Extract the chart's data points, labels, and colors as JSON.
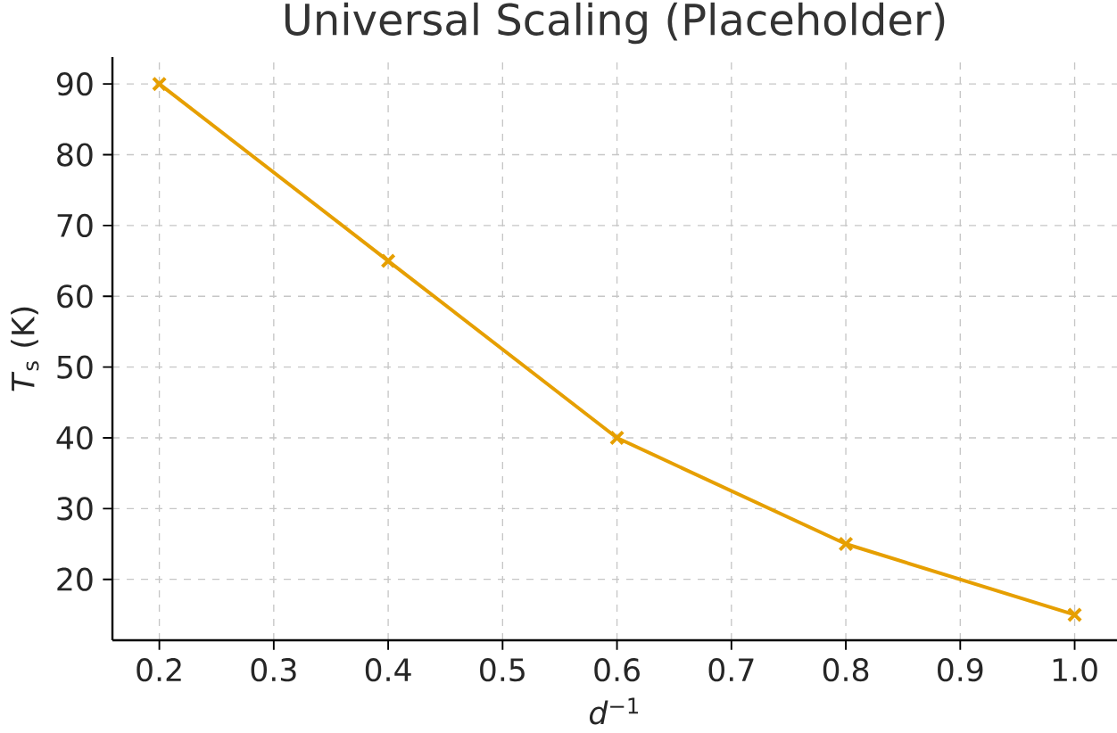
{
  "chart_data": {
    "type": "line",
    "title": "Universal Scaling (Placeholder)",
    "xlabel": "*d*$^{−1}$",
    "ylabel": "*T*$_{s}$ (K)",
    "x": [
      0.2,
      0.4,
      0.6,
      0.8,
      1.0
    ],
    "series": [
      {
        "color": "#e69f00",
        "values": [
          90,
          65,
          40,
          25,
          15
        ]
      }
    ],
    "xlim": [
      0.159,
      1.037
    ],
    "ylim": [
      11.4,
      93.8
    ],
    "xticks": [
      0.2,
      0.3,
      0.4,
      0.5,
      0.6,
      0.7,
      0.8,
      0.9,
      {
        "value": 1.0,
        "label": "1.0"
      }
    ],
    "yticks": [
      20,
      30,
      40,
      50,
      60,
      70,
      80,
      90
    ],
    "grid": true,
    "marker": "cross",
    "line_style": "solid"
  }
}
